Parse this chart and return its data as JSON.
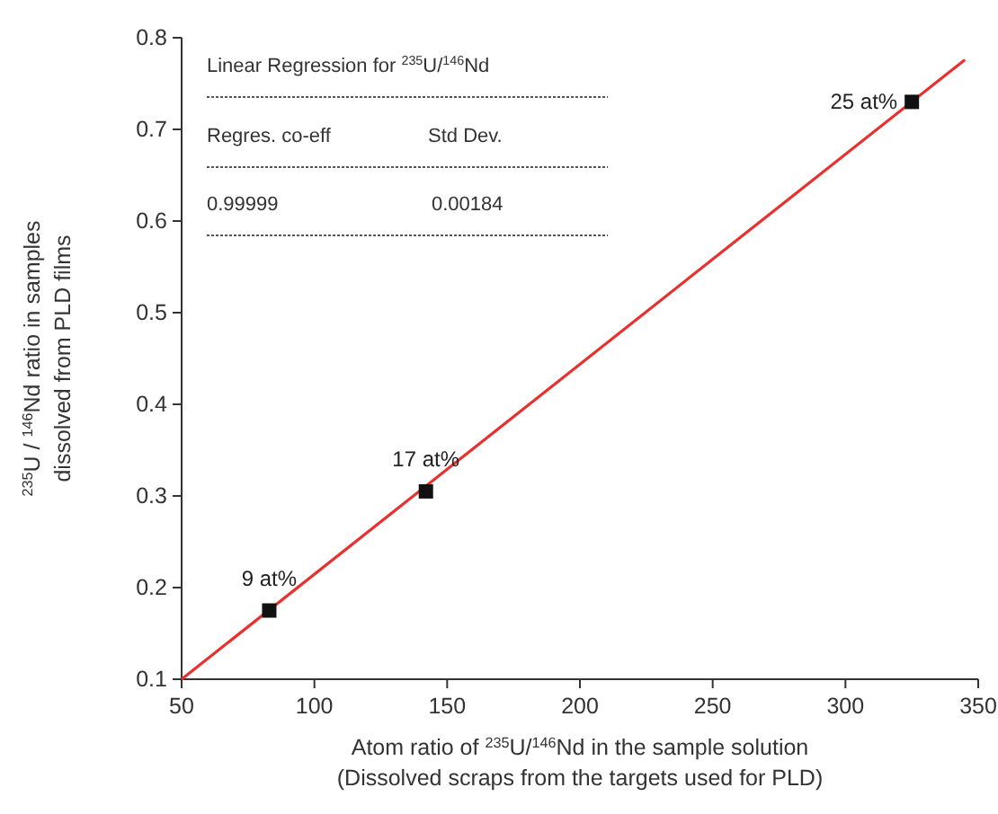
{
  "chart_data": {
    "type": "scatter",
    "xlabel": "Atom ratio of $^{235}$U/$^{146}$Nd in the sample solution\n(Dissolved scraps from the targets used for PLD)",
    "ylabel": "$^{235}$U / $^{146}$Nd ratio in samples\ndissolved from PLD films",
    "xlim": [
      50,
      350
    ],
    "xticks": [
      50,
      100,
      150,
      200,
      250,
      300,
      350
    ],
    "ylim": [
      0.1,
      0.8
    ],
    "yticks": [
      0.1,
      0.2,
      0.3,
      0.4,
      0.5,
      0.6,
      0.7,
      0.8
    ],
    "grid": false,
    "series": [
      {
        "type": "line",
        "color": "#e8302f",
        "x": [
          50,
          345
        ],
        "values": [
          0.1,
          0.776
        ],
        "marker": "none",
        "line_style": "solid"
      },
      {
        "color": "#111111",
        "x": [
          83,
          142,
          325
        ],
        "values": [
          0.175,
          0.305,
          0.73
        ],
        "marker": "square"
      }
    ],
    "annotations": [
      "Linear Regression for $^{235}$U/$^{146}$Nd",
      "Regres. co-eff",
      "Std Dev.",
      "0.99999",
      "0.00184",
      {
        "text": "9 at%",
        "x": 83,
        "y": 0.175
      },
      {
        "text": "17 at%",
        "x": 142,
        "y": 0.305
      },
      {
        "text": "25 at%",
        "x": 325,
        "y": 0.73
      }
    ]
  }
}
